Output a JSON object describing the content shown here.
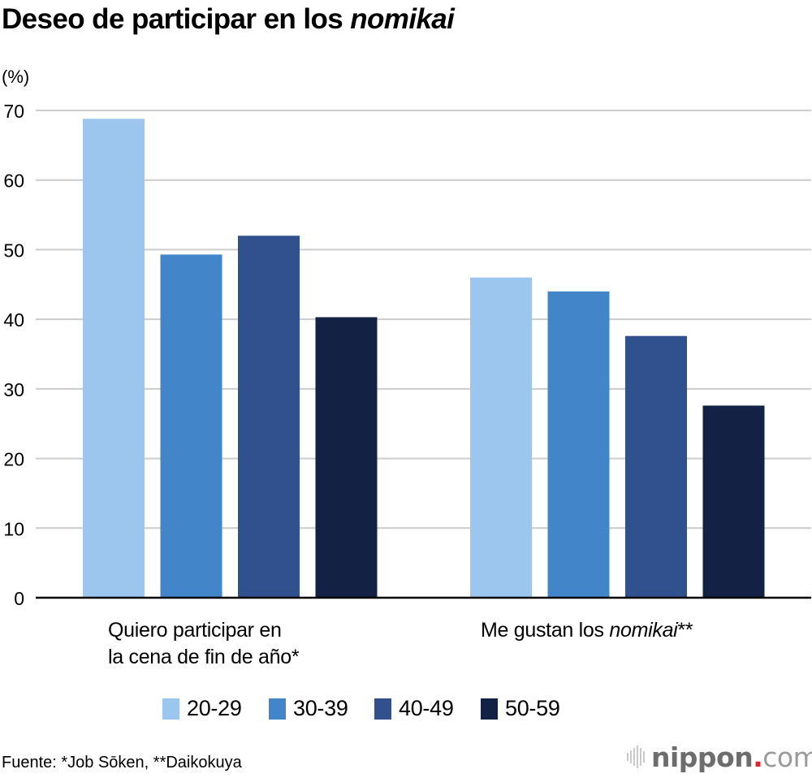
{
  "header": {
    "title_main": "Deseo de participar en los ",
    "title_italic": "nomikai",
    "unit_label": "(%)"
  },
  "chart_data": {
    "type": "bar",
    "title": "Deseo de participar en los nomikai",
    "xlabel": "",
    "ylabel": "(%)",
    "ylim": [
      0,
      70
    ],
    "yticks": [
      0,
      10,
      20,
      30,
      40,
      50,
      60,
      70
    ],
    "grid": true,
    "legend_position": "bottom",
    "categories": [
      {
        "lines": [
          "Quiero participar en",
          "la cena de fin de año*"
        ],
        "plain": "",
        "italic": "",
        "suffix": ""
      },
      {
        "lines": [],
        "plain": "Me gustan los ",
        "italic": "nomikai",
        "suffix": "**"
      }
    ],
    "category_names": [
      "Quiero participar en la cena de fin de año*",
      "Me gustan los nomikai**"
    ],
    "series": [
      {
        "name": "20-29",
        "color": "#9dc6ef",
        "values": [
          68.8,
          46.0
        ]
      },
      {
        "name": "30-39",
        "color": "#4286c9",
        "values": [
          49.3,
          44.0
        ]
      },
      {
        "name": "40-49",
        "color": "#30508e",
        "values": [
          52.0,
          37.6
        ]
      },
      {
        "name": "50-59",
        "color": "#132144",
        "values": [
          40.3,
          27.6
        ]
      }
    ]
  },
  "footer": {
    "source": "Fuente: *Job Sōken, **Daikokuya",
    "logo_main": "nippon",
    "logo_dot": ".",
    "logo_tld": "com"
  }
}
